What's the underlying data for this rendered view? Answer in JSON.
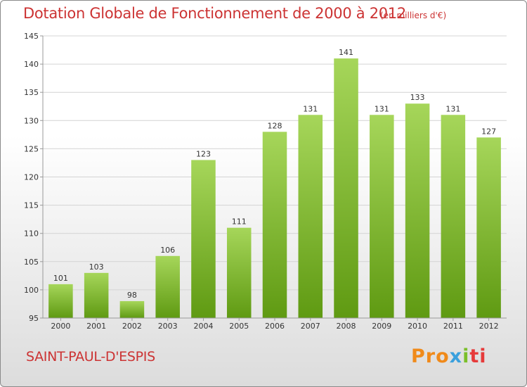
{
  "title": "Dotation Globale de Fonctionnement de 2000 à 2012",
  "unit": "(en milliers d'€)",
  "commune": "SAINT-PAUL-D'ESPIS",
  "logo": {
    "brand": "Proxiti",
    "parts": [
      "Pro",
      "x",
      "i",
      "ti"
    ],
    "colors": [
      "#f08a1a",
      "#3aa0dd",
      "#7abf2a",
      "#e63a3a"
    ]
  },
  "colors": {
    "title": "#cc3333",
    "bar_top": "#a6d65a",
    "bar_bottom": "#5f9a12",
    "grid": "#d4d4d4",
    "axis": "#999999"
  },
  "chart_data": {
    "type": "bar",
    "categories": [
      "2000",
      "2001",
      "2002",
      "2003",
      "2004",
      "2005",
      "2006",
      "2007",
      "2008",
      "2009",
      "2010",
      "2011",
      "2012"
    ],
    "values": [
      101,
      103,
      98,
      106,
      123,
      111,
      128,
      131,
      141,
      131,
      133,
      131,
      127
    ],
    "ylim": [
      95,
      145
    ],
    "yticks": [
      95,
      100,
      105,
      110,
      115,
      120,
      125,
      130,
      135,
      140,
      145
    ],
    "grid": true,
    "title": "Dotation Globale de Fonctionnement de 2000 à 2012",
    "xlabel": "",
    "ylabel": ""
  }
}
